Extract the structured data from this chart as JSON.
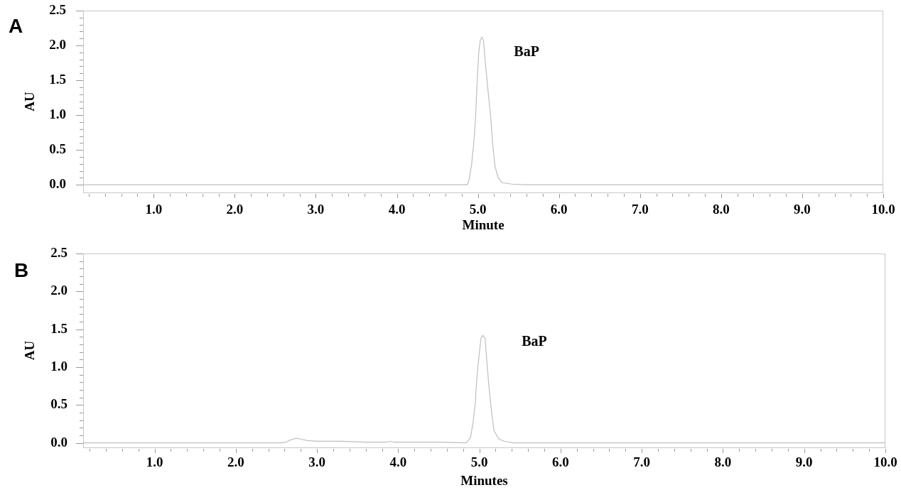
{
  "chart_data": [
    {
      "type": "line",
      "title": "A",
      "xlabel": "Minute",
      "ylabel": "AU",
      "x": [
        0.13,
        4.87,
        4.89,
        4.92,
        4.95,
        4.97,
        4.99,
        5.01,
        5.03,
        5.05,
        5.07,
        5.09,
        5.13,
        5.16,
        5.18,
        5.21,
        5.25,
        5.3,
        5.42,
        5.6,
        10
      ],
      "series": [
        {
          "color": "#bebebe",
          "values": [
            0,
            0,
            0.07,
            0.27,
            0.61,
            0.95,
            1.46,
            1.9,
            2.08,
            2.12,
            2.06,
            1.77,
            1.29,
            0.95,
            0.61,
            0.27,
            0.1,
            0.03,
            0.01,
            0,
            0
          ]
        }
      ],
      "xlim": [
        0.13,
        10
      ],
      "ylim": [
        -0.11,
        2.5
      ],
      "xticks": [
        {
          "value": 0.2,
          "label": null
        },
        {
          "value": 0.4,
          "label": null
        },
        {
          "value": 0.6,
          "label": null
        },
        {
          "value": 0.8,
          "label": null
        },
        {
          "value": 1,
          "label": "1.0"
        },
        {
          "value": 1.2,
          "label": null
        },
        {
          "value": 1.4,
          "label": null
        },
        {
          "value": 1.6,
          "label": null
        },
        {
          "value": 1.8,
          "label": null
        },
        {
          "value": 2,
          "label": "2.0"
        },
        {
          "value": 2.2,
          "label": null
        },
        {
          "value": 2.4,
          "label": null
        },
        {
          "value": 2.6,
          "label": null
        },
        {
          "value": 2.8,
          "label": null
        },
        {
          "value": 3,
          "label": "3.0"
        },
        {
          "value": 3.2,
          "label": null
        },
        {
          "value": 3.4,
          "label": null
        },
        {
          "value": 3.6,
          "label": null
        },
        {
          "value": 3.8,
          "label": null
        },
        {
          "value": 4,
          "label": "4.0"
        },
        {
          "value": 4.2,
          "label": null
        },
        {
          "value": 4.4,
          "label": null
        },
        {
          "value": 4.6,
          "label": null
        },
        {
          "value": 4.8,
          "label": null
        },
        {
          "value": 5,
          "label": "5.0"
        },
        {
          "value": 5.2,
          "label": null
        },
        {
          "value": 5.4,
          "label": null
        },
        {
          "value": 5.6,
          "label": null
        },
        {
          "value": 5.8,
          "label": null
        },
        {
          "value": 6,
          "label": "6.0"
        },
        {
          "value": 6.2,
          "label": null
        },
        {
          "value": 6.4,
          "label": null
        },
        {
          "value": 6.6,
          "label": null
        },
        {
          "value": 6.8,
          "label": null
        },
        {
          "value": 7,
          "label": "7.0"
        },
        {
          "value": 7.2,
          "label": null
        },
        {
          "value": 7.4,
          "label": null
        },
        {
          "value": 7.6,
          "label": null
        },
        {
          "value": 7.8,
          "label": null
        },
        {
          "value": 8,
          "label": "8.0"
        },
        {
          "value": 8.2,
          "label": null
        },
        {
          "value": 8.4,
          "label": null
        },
        {
          "value": 8.6,
          "label": null
        },
        {
          "value": 8.8,
          "label": null
        },
        {
          "value": 9,
          "label": "9.0"
        },
        {
          "value": 9.2,
          "label": null
        },
        {
          "value": 9.4,
          "label": null
        },
        {
          "value": 9.6,
          "label": null
        },
        {
          "value": 9.8,
          "label": null
        },
        {
          "value": 10,
          "label": "10.0"
        }
      ],
      "yticks": [
        {
          "value": 0,
          "label": "0.0"
        },
        {
          "value": 0.1,
          "label": null
        },
        {
          "value": 0.2,
          "label": null
        },
        {
          "value": 0.3,
          "label": null
        },
        {
          "value": 0.4,
          "label": null
        },
        0.5,
        {
          "value": 0.6,
          "label": null
        },
        {
          "value": 0.7,
          "label": null
        },
        {
          "value": 0.8,
          "label": null
        },
        {
          "value": 0.9,
          "label": null
        },
        {
          "value": 1,
          "label": "1.0"
        },
        {
          "value": 1.1,
          "label": null
        },
        {
          "value": 1.2,
          "label": null
        },
        {
          "value": 1.3,
          "label": null
        },
        {
          "value": 1.4,
          "label": null
        },
        1.5,
        {
          "value": 1.6,
          "label": null
        },
        {
          "value": 1.7,
          "label": null
        },
        {
          "value": 1.8,
          "label": null
        },
        {
          "value": 1.9,
          "label": null
        },
        {
          "value": 2,
          "label": "2.0"
        },
        {
          "value": 2.1,
          "label": null
        },
        {
          "value": 2.2,
          "label": null
        },
        {
          "value": 2.3,
          "label": null
        },
        {
          "value": 2.4,
          "label": null
        },
        2.5
      ],
      "annotations": [
        {
          "text": "BaP",
          "x": 5.05,
          "y": 2.12
        }
      ]
    },
    {
      "type": "line",
      "title": "B",
      "xlabel": "Minutes",
      "ylabel": "AU",
      "x": [
        0.12,
        2.55,
        2.62,
        2.68,
        2.74,
        2.8,
        2.88,
        3.0,
        3.3,
        3.6,
        3.85,
        3.9,
        3.95,
        4.1,
        4.5,
        4.84,
        4.89,
        4.92,
        4.95,
        4.97,
        5.0,
        5.02,
        5.04,
        5.07,
        5.09,
        5.12,
        5.15,
        5.18,
        5.24,
        5.31,
        5.42,
        10
      ],
      "series": [
        {
          "color": "#bebebe",
          "values": [
            0,
            0,
            0.01,
            0.04,
            0.06,
            0.05,
            0.03,
            0.02,
            0.02,
            0.01,
            0.01,
            0.02,
            0.01,
            0.01,
            0.01,
            0,
            0.07,
            0.25,
            0.53,
            0.88,
            1.19,
            1.38,
            1.42,
            1.38,
            1.1,
            0.72,
            0.41,
            0.16,
            0.05,
            0.02,
            0,
            0
          ]
        }
      ],
      "xlim": [
        0.12,
        10
      ],
      "ylim": [
        -0.06,
        2.5
      ],
      "xticks": [
        {
          "value": 0.2,
          "label": null
        },
        {
          "value": 0.4,
          "label": null
        },
        {
          "value": 0.6,
          "label": null
        },
        {
          "value": 0.8,
          "label": null
        },
        {
          "value": 1,
          "label": "1.0"
        },
        {
          "value": 1.2,
          "label": null
        },
        {
          "value": 1.4,
          "label": null
        },
        {
          "value": 1.6,
          "label": null
        },
        {
          "value": 1.8,
          "label": null
        },
        {
          "value": 2,
          "label": "2.0"
        },
        {
          "value": 2.2,
          "label": null
        },
        {
          "value": 2.4,
          "label": null
        },
        {
          "value": 2.6,
          "label": null
        },
        {
          "value": 2.8,
          "label": null
        },
        {
          "value": 3,
          "label": "3.0"
        },
        {
          "value": 3.2,
          "label": null
        },
        {
          "value": 3.4,
          "label": null
        },
        {
          "value": 3.6,
          "label": null
        },
        {
          "value": 3.8,
          "label": null
        },
        {
          "value": 4,
          "label": "4.0"
        },
        {
          "value": 4.2,
          "label": null
        },
        {
          "value": 4.4,
          "label": null
        },
        {
          "value": 4.6,
          "label": null
        },
        {
          "value": 4.8,
          "label": null
        },
        {
          "value": 5,
          "label": "5.0"
        },
        {
          "value": 5.2,
          "label": null
        },
        {
          "value": 5.4,
          "label": null
        },
        {
          "value": 5.6,
          "label": null
        },
        {
          "value": 5.8,
          "label": null
        },
        {
          "value": 6,
          "label": "6.0"
        },
        {
          "value": 6.2,
          "label": null
        },
        {
          "value": 6.4,
          "label": null
        },
        {
          "value": 6.6,
          "label": null
        },
        {
          "value": 6.8,
          "label": null
        },
        {
          "value": 7,
          "label": "7.0"
        },
        {
          "value": 7.2,
          "label": null
        },
        {
          "value": 7.4,
          "label": null
        },
        {
          "value": 7.6,
          "label": null
        },
        {
          "value": 7.8,
          "label": null
        },
        {
          "value": 8,
          "label": "8.0"
        },
        {
          "value": 8.2,
          "label": null
        },
        {
          "value": 8.4,
          "label": null
        },
        {
          "value": 8.6,
          "label": null
        },
        {
          "value": 8.8,
          "label": null
        },
        {
          "value": 9,
          "label": "9.0"
        },
        {
          "value": 9.2,
          "label": null
        },
        {
          "value": 9.4,
          "label": null
        },
        {
          "value": 9.6,
          "label": null
        },
        {
          "value": 9.8,
          "label": null
        },
        {
          "value": 10,
          "label": "10.0"
        }
      ],
      "yticks": [
        {
          "value": 0,
          "label": "0.0"
        },
        {
          "value": 0.1,
          "label": null
        },
        {
          "value": 0.2,
          "label": null
        },
        {
          "value": 0.3,
          "label": null
        },
        {
          "value": 0.4,
          "label": null
        },
        0.5,
        {
          "value": 0.6,
          "label": null
        },
        {
          "value": 0.7,
          "label": null
        },
        {
          "value": 0.8,
          "label": null
        },
        {
          "value": 0.9,
          "label": null
        },
        {
          "value": 1,
          "label": "1.0"
        },
        {
          "value": 1.1,
          "label": null
        },
        {
          "value": 1.2,
          "label": null
        },
        {
          "value": 1.3,
          "label": null
        },
        {
          "value": 1.4,
          "label": null
        },
        1.5,
        {
          "value": 1.6,
          "label": null
        },
        {
          "value": 1.7,
          "label": null
        },
        {
          "value": 1.8,
          "label": null
        },
        {
          "value": 1.9,
          "label": null
        },
        {
          "value": 2,
          "label": "2.0"
        },
        {
          "value": 2.1,
          "label": null
        },
        {
          "value": 2.2,
          "label": null
        },
        {
          "value": 2.3,
          "label": null
        },
        {
          "value": 2.4,
          "label": null
        },
        2.5
      ],
      "annotations": [
        {
          "text": "BaP",
          "x": 5.04,
          "y": 1.42
        }
      ]
    }
  ]
}
